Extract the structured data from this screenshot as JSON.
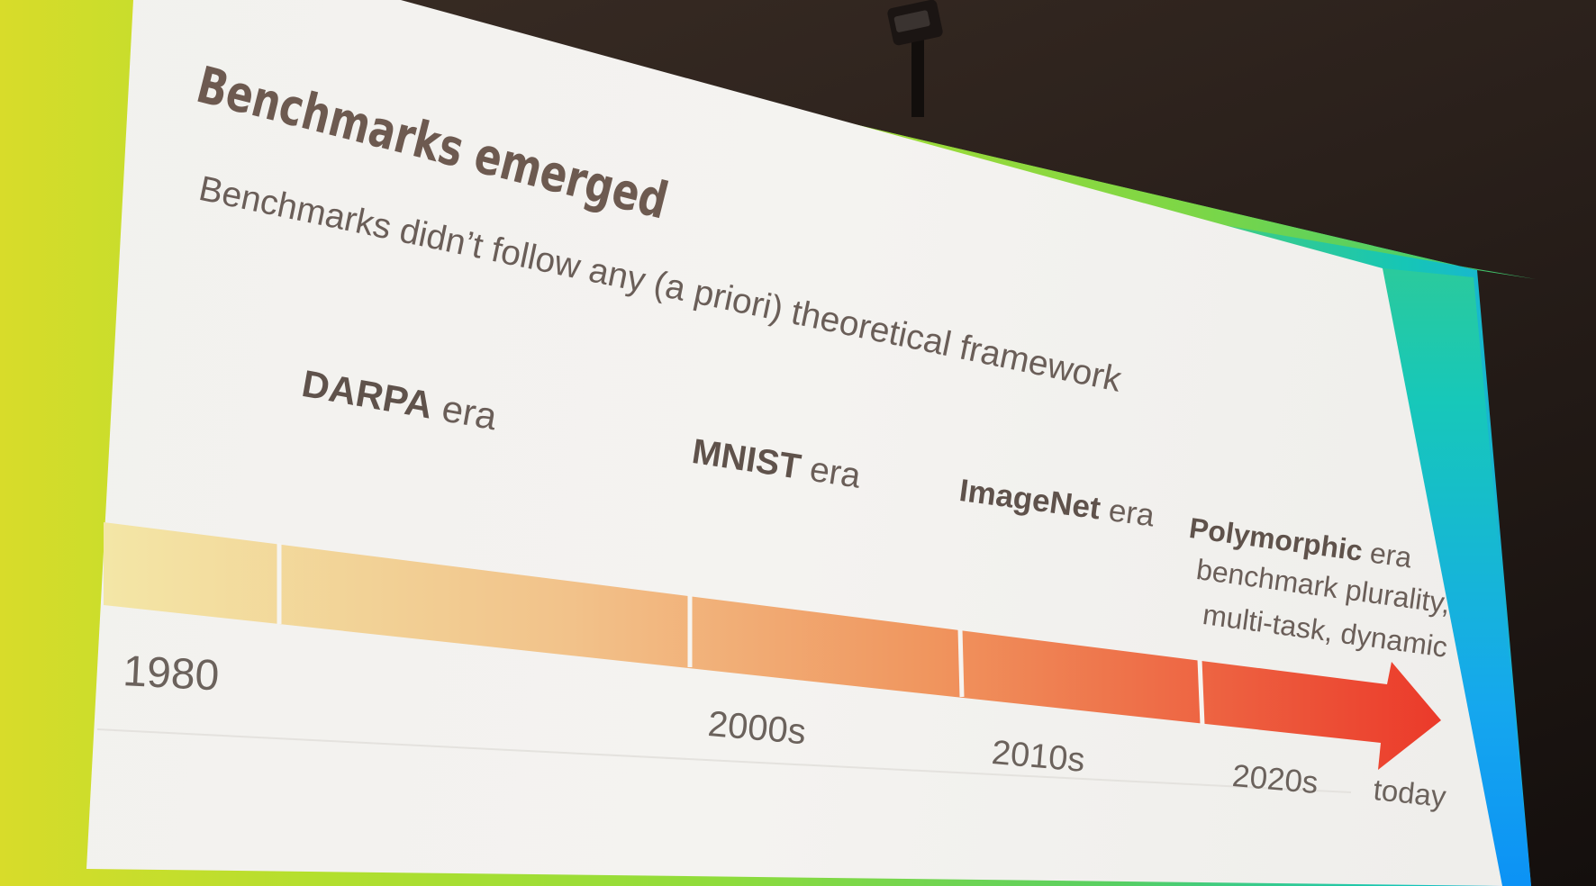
{
  "slide": {
    "title": "Benchmarks emerged",
    "subtitle": "Benchmarks didn’t follow any (a priori) theoretical framework"
  },
  "eras": [
    {
      "name": "DARPA",
      "suffix": " era"
    },
    {
      "name": "MNIST",
      "suffix": " era"
    },
    {
      "name": "ImageNet",
      "suffix": " era"
    },
    {
      "name": "Polymorphic",
      "suffix": " era",
      "desc_line1": "benchmark plurality,",
      "desc_line2": "multi-task, dynamic"
    }
  ],
  "timeline": {
    "labels": [
      "1980",
      "2000s",
      "2010s",
      "2020s",
      "today"
    ],
    "colors": {
      "start": "#f3e6a6",
      "mid1": "#f2c28a",
      "mid2": "#f0955e",
      "end": "#eb3a2a"
    }
  }
}
